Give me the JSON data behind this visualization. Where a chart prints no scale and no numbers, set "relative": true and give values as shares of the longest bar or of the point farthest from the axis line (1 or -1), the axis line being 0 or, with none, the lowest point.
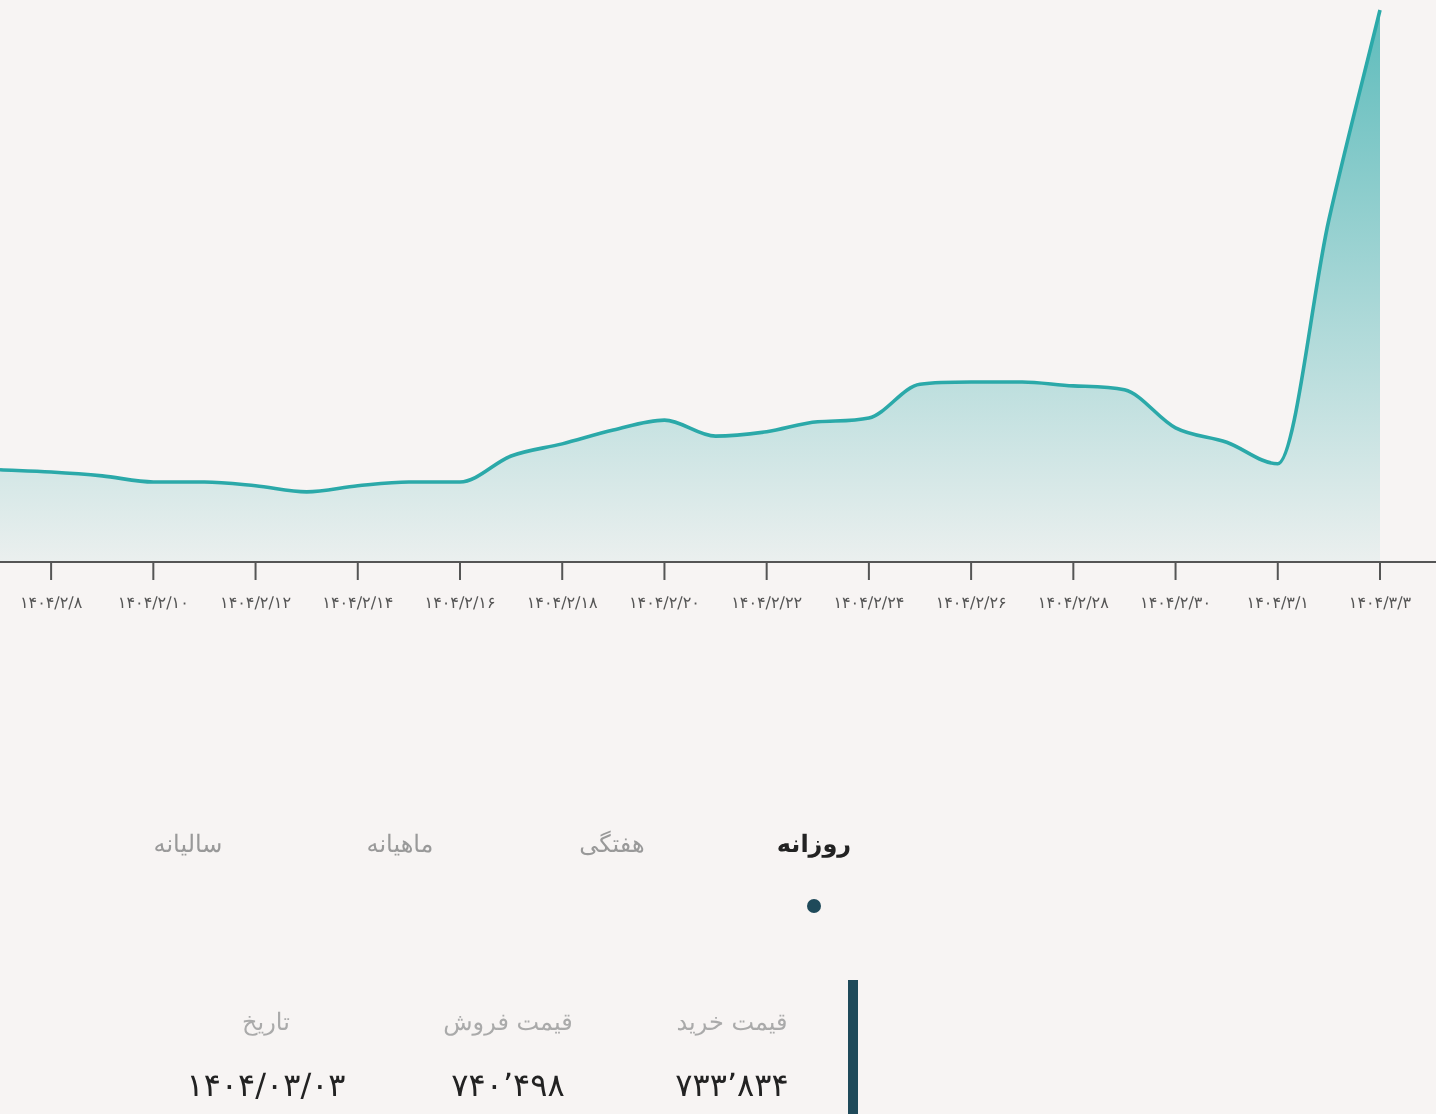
{
  "chart_data": {
    "type": "area",
    "relative": true,
    "color": "#2ba9a9",
    "categories": [
      null,
      "۱۴۰۴/۲/۸",
      null,
      "۱۴۰۴/۲/۱۰",
      null,
      "۱۴۰۴/۲/۱۲",
      null,
      "۱۴۰۴/۲/۱۴",
      null,
      "۱۴۰۴/۲/۱۶",
      null,
      "۱۴۰۴/۲/۱۸",
      null,
      "۱۴۰۴/۲/۲۰",
      null,
      "۱۴۰۴/۲/۲۲",
      null,
      "۱۴۰۴/۲/۲۴",
      null,
      "۱۴۰۴/۲/۲۶",
      null,
      "۱۴۰۴/۲/۲۸",
      null,
      "۱۴۰۴/۲/۳۰",
      null,
      "۱۴۰۴/۳/۱",
      null,
      "۱۴۰۴/۳/۳"
    ],
    "values": [
      0.167,
      0.163,
      0.156,
      0.145,
      0.145,
      0.138,
      0.127,
      0.138,
      0.145,
      0.145,
      0.192,
      0.214,
      0.239,
      0.257,
      0.228,
      0.236,
      0.254,
      0.261,
      0.322,
      0.326,
      0.326,
      0.319,
      0.312,
      0.243,
      0.217,
      0.178,
      0.62,
      1
    ],
    "annotations": [
      "روزانه",
      "هفتگی",
      "ماهیانه",
      "سالیانه",
      "قیمت خرید",
      "قیمت فروش",
      "تاریخ",
      "۷۳۳٬۸۳۴",
      "۷۴۰٬۴۹۸",
      "۱۴۰۴/۰۳/۰۳"
    ]
  }
}
